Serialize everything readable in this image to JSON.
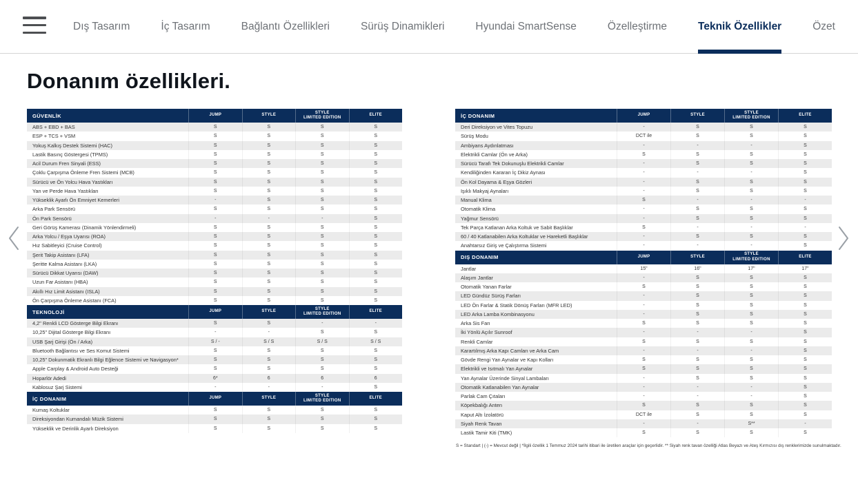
{
  "colors": {
    "navy": "#0b2d5b",
    "stripe_gray": "#ebebeb",
    "active_tab": "#0b2d5b"
  },
  "nav": {
    "tabs": [
      {
        "id": "dis-tasarim",
        "label": "Dış Tasarım",
        "active": false
      },
      {
        "id": "ic-tasarim",
        "label": "İç Tasarım",
        "active": false
      },
      {
        "id": "baglanti-ozellikleri",
        "label": "Bağlantı Özellikleri",
        "active": false
      },
      {
        "id": "surus-dinamikleri",
        "label": "Sürüş Dinamikleri",
        "active": false
      },
      {
        "id": "hyundai-smartsense",
        "label": "Hyundai SmartSense",
        "active": false
      },
      {
        "id": "ozellestirme",
        "label": "Özelleştirme",
        "active": false
      },
      {
        "id": "teknik-ozellikler",
        "label": "Teknik Özellikler",
        "active": true
      },
      {
        "id": "ozet",
        "label": "Özet",
        "active": false
      }
    ]
  },
  "page_title": "Donanım özellikleri.",
  "columns": [
    {
      "id": "jump",
      "lines": [
        "JUMP"
      ]
    },
    {
      "id": "style",
      "lines": [
        "STYLE"
      ]
    },
    {
      "id": "style-limited-edition",
      "lines": [
        "STYLE",
        "LIMITED EDITION"
      ]
    },
    {
      "id": "elite",
      "lines": [
        "ELITE"
      ]
    }
  ],
  "tables": {
    "left": {
      "sections": [
        {
          "id": "guvenlik",
          "title": "GÜVENLİK",
          "first_row_gray": true,
          "rows": [
            {
              "label": "ABS + EBD + BAS",
              "values": [
                "S",
                "S",
                "S",
                "S"
              ]
            },
            {
              "label": "ESP + TCS + VSM",
              "values": [
                "S",
                "S",
                "S",
                "S"
              ]
            },
            {
              "label": "Yokuş Kalkış Destek Sistemi (HAC)",
              "values": [
                "S",
                "S",
                "S",
                "S"
              ]
            },
            {
              "label": "Lastik Basınç Göstergesi (TPMS)",
              "values": [
                "S",
                "S",
                "S",
                "S"
              ]
            },
            {
              "label": "Acil Durum Fren Sinyali (ESS)",
              "values": [
                "S",
                "S",
                "S",
                "S"
              ]
            },
            {
              "label": "Çoklu Çarpışma Önleme Fren Sistemi (MCB)",
              "values": [
                "S",
                "S",
                "S",
                "S"
              ]
            },
            {
              "label": "Sürücü ve Ön Yolcu Hava Yastıkları",
              "values": [
                "S",
                "S",
                "S",
                "S"
              ]
            },
            {
              "label": "Yan ve Perde Hava Yastıkları",
              "values": [
                "S",
                "S",
                "S",
                "S"
              ]
            },
            {
              "label": "Yükseklik Ayarlı Ön Emniyet Kemerleri",
              "values": [
                "-",
                "S",
                "S",
                "S"
              ]
            },
            {
              "label": "Arka Park Sensörü",
              "values": [
                "S",
                "S",
                "S",
                "S"
              ]
            },
            {
              "label": "Ön Park Sensörü",
              "values": [
                "-",
                "-",
                "-",
                "S"
              ]
            },
            {
              "label": "Geri Görüş Kamerası (Dinamik Yönlendirmeli)",
              "values": [
                "S",
                "S",
                "S",
                "S"
              ]
            },
            {
              "label": "Arka Yolcu / Eşya Uyarısı (ROA)",
              "values": [
                "S",
                "S",
                "S",
                "S"
              ]
            },
            {
              "label": "Hız Sabitleyici (Cruise Control)",
              "values": [
                "S",
                "S",
                "S",
                "S"
              ]
            },
            {
              "label": "Şerit Takip Asistanı (LFA)",
              "values": [
                "S",
                "S",
                "S",
                "S"
              ]
            },
            {
              "label": "Şeritte Kalma Asistanı (LKA)",
              "values": [
                "S",
                "S",
                "S",
                "S"
              ]
            },
            {
              "label": "Sürücü Dikkat Uyarısı (DAW)",
              "values": [
                "S",
                "S",
                "S",
                "S"
              ]
            },
            {
              "label": "Uzun Far Asistanı (HBA)",
              "values": [
                "S",
                "S",
                "S",
                "S"
              ]
            },
            {
              "label": "Akıllı Hız Limit Asistanı (ISLA)",
              "values": [
                "S",
                "S",
                "S",
                "S"
              ]
            },
            {
              "label": "Ön Çarpışma Önleme Asistanı (FCA)",
              "values": [
                "S",
                "S",
                "S",
                "S"
              ]
            }
          ]
        },
        {
          "id": "teknoloji",
          "title": "TEKNOLOJİ",
          "first_row_gray": true,
          "rows": [
            {
              "label": "4,2\" Renkli LCD Gösterge Bilgi Ekranı",
              "values": [
                "S",
                "S",
                "-",
                "-"
              ]
            },
            {
              "label": "10,25\" Dijital Gösterge Bilgi Ekranı",
              "values": [
                "-",
                "-",
                "S",
                "S"
              ]
            },
            {
              "label": "USB Şarj Girişi (Ön / Arka)",
              "values": [
                "S / -",
                "S / S",
                "S / S",
                "S / S"
              ]
            },
            {
              "label": "Bluetooth Bağlantısı ve Ses Komut Sistemi",
              "values": [
                "S",
                "S",
                "S",
                "S"
              ]
            },
            {
              "label": "10,25\" Dokunmatik Ekranlı Bilgi Eğlence Sistemi ve Navigasyon*",
              "values": [
                "S",
                "S",
                "S",
                "S"
              ]
            },
            {
              "label": "Apple Carplay & Android Auto Desteği",
              "values": [
                "S",
                "S",
                "S",
                "S"
              ]
            },
            {
              "label": "Hoparlör Adedi",
              "values": [
                "6*",
                "6",
                "6",
                "6"
              ]
            },
            {
              "label": "Kablosuz Şarj Sistemi",
              "values": [
                "-",
                "-",
                "-",
                "S"
              ]
            }
          ]
        },
        {
          "id": "ic-donanim-sol",
          "title": "İÇ DONANIM",
          "first_row_gray": false,
          "rows": [
            {
              "label": "Kumaş Koltuklar",
              "values": [
                "S",
                "S",
                "S",
                "S"
              ]
            },
            {
              "label": "Direksiyondan Kumandalı Müzik Sistemi",
              "values": [
                "S",
                "S",
                "S",
                "S"
              ]
            },
            {
              "label": "Yükseklik ve Derinlik Ayarlı Direksiyon",
              "values": [
                "S",
                "S",
                "S",
                "S"
              ]
            }
          ]
        }
      ]
    },
    "right": {
      "sections": [
        {
          "id": "ic-donanim",
          "title": "İÇ DONANIM",
          "first_row_gray": true,
          "rows": [
            {
              "label": "Deri Direksiyon ve Vites Topuzu",
              "values": [
                "-",
                "S",
                "S",
                "S"
              ]
            },
            {
              "label": "Sürüş Modu",
              "values": [
                "DCT ile",
                "S",
                "S",
                "S"
              ]
            },
            {
              "label": "Ambiyans Aydınlatması",
              "values": [
                "-",
                "-",
                "-",
                "S"
              ]
            },
            {
              "label": "Elektrikli Camlar (Ön ve Arka)",
              "values": [
                "S",
                "S",
                "S",
                "S"
              ]
            },
            {
              "label": "Sürücü Tarafı Tek Dokunuşlu Elektrikli Camlar",
              "values": [
                "-",
                "S",
                "S",
                "S"
              ]
            },
            {
              "label": "Kendiliğinden Kararan İç Dikiz Aynası",
              "values": [
                "-",
                "-",
                "-",
                "S"
              ]
            },
            {
              "label": "Ön Kol Dayama & Eşya Gözleri",
              "values": [
                "-",
                "S",
                "S",
                "S"
              ]
            },
            {
              "label": "Işıklı Makyaj Aynaları",
              "values": [
                "-",
                "S",
                "S",
                "S"
              ]
            },
            {
              "label": "Manual Klima",
              "values": [
                "S",
                "-",
                "-",
                "-"
              ]
            },
            {
              "label": "Otomatik Klima",
              "values": [
                "-",
                "S",
                "S",
                "S"
              ]
            },
            {
              "label": "Yağmur Sensörü",
              "values": [
                "-",
                "S",
                "S",
                "S"
              ]
            },
            {
              "label": "Tek Parça Katlanan Arka Koltuk ve Sabit Başlıklar",
              "values": [
                "S",
                "-",
                "-",
                "-"
              ]
            },
            {
              "label": "60 / 40 Katlanabilen Arka Koltuklar ve Hareketli Başlıklar",
              "values": [
                "-",
                "S",
                "S",
                "S"
              ]
            },
            {
              "label": "Anahtarsız Giriş ve Çalıştırma Sistemi",
              "values": [
                "-",
                "-",
                "-",
                "S"
              ]
            }
          ]
        },
        {
          "id": "dis-donanim",
          "title": "DIŞ DONANIM",
          "first_row_gray": false,
          "rows": [
            {
              "label": "Jantlar",
              "values": [
                "15\"",
                "16\"",
                "17\"",
                "17\""
              ]
            },
            {
              "label": "Alaşım Jantlar",
              "values": [
                "-",
                "S",
                "S",
                "S"
              ]
            },
            {
              "label": "Otomatik Yanan Farlar",
              "values": [
                "S",
                "S",
                "S",
                "S"
              ]
            },
            {
              "label": "LED Gündüz Sürüş Farları",
              "values": [
                "-",
                "S",
                "S",
                "S"
              ]
            },
            {
              "label": "LED Ön Farlar & Statik Dönüş Farları (MFR LED)",
              "values": [
                "-",
                "S",
                "S",
                "S"
              ]
            },
            {
              "label": "LED Arka Lamba Kombinasyonu",
              "values": [
                "-",
                "S",
                "S",
                "S"
              ]
            },
            {
              "label": "Arka Sis Farı",
              "values": [
                "S",
                "S",
                "S",
                "S"
              ]
            },
            {
              "label": "İki Yönlü Açılır Sunroof",
              "values": [
                "-",
                "-",
                "-",
                "S"
              ]
            },
            {
              "label": "Renkli Camlar",
              "values": [
                "S",
                "S",
                "S",
                "S"
              ]
            },
            {
              "label": "Karartılmış Arka Kapı Camları ve Arka Cam",
              "values": [
                "-",
                "-",
                "-",
                "S"
              ]
            },
            {
              "label": "Gövde Rengi Yan Aynalar ve Kapı Kolları",
              "values": [
                "S",
                "S",
                "S",
                "S"
              ]
            },
            {
              "label": "Elektrikli ve Isıtmalı Yan Aynalar",
              "values": [
                "S",
                "S",
                "S",
                "S"
              ]
            },
            {
              "label": "Yan Aynalar Üzerinde Sinyal Lambaları",
              "values": [
                "-",
                "S",
                "S",
                "S"
              ]
            },
            {
              "label": "Otomatik Katlanabilen Yan Aynalar",
              "values": [
                "-",
                "-",
                "-",
                "S"
              ]
            },
            {
              "label": "Parlak Cam Çıtaları",
              "values": [
                "-",
                "-",
                "-",
                "S"
              ]
            },
            {
              "label": "Köpekbalığı Anten",
              "values": [
                "S",
                "S",
                "S",
                "S"
              ]
            },
            {
              "label": "Kaput Altı İzolatörü",
              "values": [
                "DCT ile",
                "S",
                "S",
                "S"
              ]
            },
            {
              "label": "Siyah Renk Tavan",
              "values": [
                "-",
                "-",
                "S**",
                "-"
              ]
            },
            {
              "label": "Lastik Tamir Kiti (TMK)",
              "values": [
                "S",
                "S",
                "S",
                "S"
              ]
            }
          ]
        }
      ]
    }
  },
  "footnote": {
    "text": "S = Standart | (-) = Mevcut değil |  *İlgili özellik 1 Temmuz 2024 tarihi itibari ile üretilen araçlar için geçerlidir. ** Siyah renk tavan özelliği Atlas Beyazı ve Ateş Kırmızısı dış renklerimizde sunulmaktadır."
  }
}
